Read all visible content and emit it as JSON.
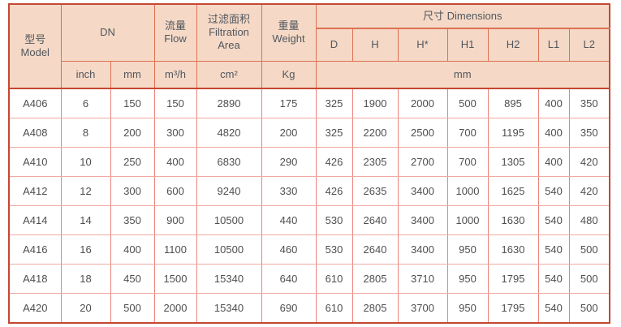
{
  "table": {
    "header": {
      "model": {
        "zh": "型号",
        "en": "Model"
      },
      "dn": "DN",
      "flow": {
        "zh": "流量",
        "en": "Flow"
      },
      "filtration": {
        "zh": "过滤面积",
        "en": "Filtration Area"
      },
      "weight": {
        "zh": "重量",
        "en": "Weight"
      },
      "dimensions": "尺寸 Dimensions",
      "dim_columns": [
        "D",
        "H",
        "H*",
        "H1",
        "H2",
        "L1",
        "L2"
      ],
      "units": {
        "dn_inch": "inch",
        "dn_mm": "mm",
        "flow": "m³/h",
        "filtration": "cm²",
        "weight": "Kg",
        "dimensions": "mm"
      }
    },
    "rows": [
      [
        "A406",
        "6",
        "150",
        "150",
        "2890",
        "175",
        "325",
        "1900",
        "2000",
        "500",
        "895",
        "400",
        "350"
      ],
      [
        "A408",
        "8",
        "200",
        "300",
        "4820",
        "200",
        "325",
        "2200",
        "2500",
        "700",
        "1195",
        "400",
        "350"
      ],
      [
        "A410",
        "10",
        "250",
        "400",
        "6830",
        "290",
        "426",
        "2305",
        "2700",
        "700",
        "1305",
        "400",
        "420"
      ],
      [
        "A412",
        "12",
        "300",
        "600",
        "9240",
        "330",
        "426",
        "2635",
        "3400",
        "1000",
        "1625",
        "540",
        "420"
      ],
      [
        "A414",
        "14",
        "350",
        "900",
        "10500",
        "440",
        "530",
        "2640",
        "3400",
        "1000",
        "1630",
        "540",
        "480"
      ],
      [
        "A416",
        "16",
        "400",
        "1100",
        "10500",
        "460",
        "530",
        "2640",
        "3400",
        "950",
        "1630",
        "540",
        "500"
      ],
      [
        "A418",
        "18",
        "450",
        "1500",
        "15340",
        "640",
        "610",
        "2805",
        "3710",
        "950",
        "1795",
        "540",
        "500"
      ],
      [
        "A420",
        "20",
        "500",
        "2000",
        "15340",
        "690",
        "610",
        "2805",
        "3700",
        "950",
        "1795",
        "540",
        "500"
      ]
    ]
  },
  "colors": {
    "header_background": "#f5d9c6",
    "outer_border": "#c64732",
    "header_border": "#dd7153",
    "body_border_vertical": "#ec837b",
    "body_border_horizontal": "#f1a9a1",
    "text": "#4f4f4f"
  }
}
